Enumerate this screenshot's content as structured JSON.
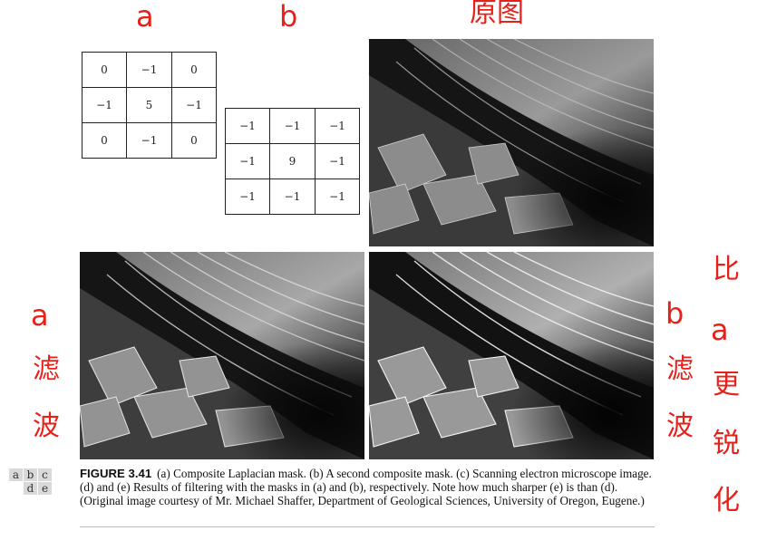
{
  "labels": {
    "a_top": "a",
    "b_top": "b",
    "original": "原图",
    "a_left": "a",
    "filter_a_1": "滤",
    "filter_a_2": "波",
    "b_mid": "b",
    "filter_b_1": "滤",
    "filter_b_2": "波",
    "compare_1": "比",
    "compare_2": "a",
    "compare_3": "更",
    "compare_4": "锐",
    "compare_5": "化"
  },
  "mask_a": [
    [
      "0",
      "−1",
      "0"
    ],
    [
      "−1",
      "5",
      "−1"
    ],
    [
      "0",
      "−1",
      "0"
    ]
  ],
  "mask_b": [
    [
      "−1",
      "−1",
      "−1"
    ],
    [
      "−1",
      "9",
      "−1"
    ],
    [
      "−1",
      "−1",
      "−1"
    ]
  ],
  "legend": {
    "row1": [
      "a",
      "b",
      "c"
    ],
    "row2": [
      "d",
      "e"
    ]
  },
  "caption": {
    "figure": "FIGURE 3.41",
    "text": "(a) Composite Laplacian mask. (b) A second composite mask. (c) Scanning electron microscope image. (d) and (e) Results of filtering with the masks in (a) and (b), respectively. Note how much sharper (e) is than (d). (Original image courtesy of Mr. Michael Shaffer, Department of Geological Sciences, University of Oregon, Eugene.)"
  },
  "colors": {
    "annotation": "#e8201a"
  }
}
